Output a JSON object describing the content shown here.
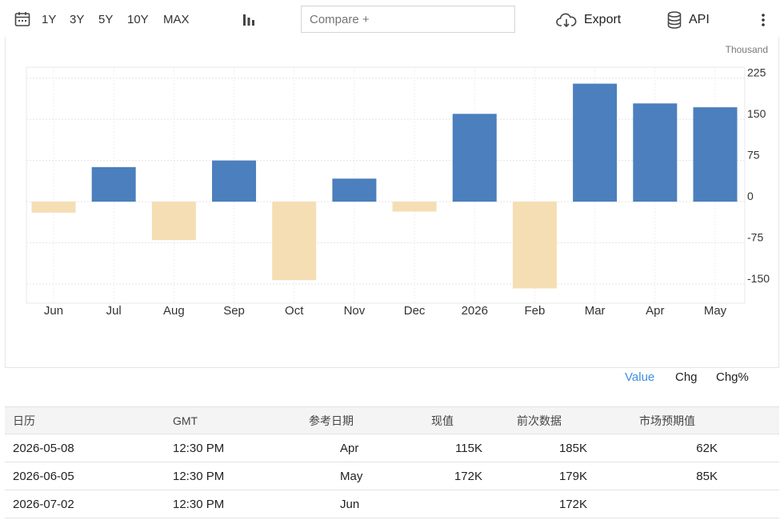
{
  "toolbar": {
    "ranges": [
      "1Y",
      "3Y",
      "5Y",
      "10Y",
      "MAX"
    ],
    "compare_placeholder": "Compare +",
    "export_label": "Export",
    "api_label": "API",
    "icons": [
      "calendar-icon",
      "bar-chart-icon",
      "cloud-download-icon",
      "database-icon",
      "more-vertical-icon"
    ]
  },
  "chart_data": {
    "type": "bar",
    "unit_label": "Thousand",
    "categories": [
      "Jun",
      "Jul",
      "Aug",
      "Sep",
      "Oct",
      "Nov",
      "Dec",
      "2026",
      "Feb",
      "Mar",
      "Apr",
      "May"
    ],
    "values": [
      -20,
      63,
      -70,
      75,
      -143,
      42,
      -18,
      160,
      -158,
      215,
      179,
      172
    ],
    "y_ticks": [
      225,
      150,
      75,
      0,
      -75,
      -150
    ],
    "ylim": [
      -185,
      245
    ],
    "colors": {
      "positive": "#4b7fbd",
      "negative": "#f5deb3"
    },
    "grid": true
  },
  "chart_tabs": {
    "value": "Value",
    "chg": "Chg",
    "chg_pct": "Chg%",
    "active_color": "#3d8fe0"
  },
  "calendar_table": {
    "headers": [
      "日历",
      "GMT",
      "参考日期",
      "现值",
      "前次数据",
      "市场预期值"
    ],
    "rows": [
      [
        "2026-05-08",
        "12:30 PM",
        "Apr",
        "115K",
        "185K",
        "62K"
      ],
      [
        "2026-06-05",
        "12:30 PM",
        "May",
        "172K",
        "179K",
        "85K"
      ],
      [
        "2026-07-02",
        "12:30 PM",
        "Jun",
        "",
        "172K",
        ""
      ]
    ]
  }
}
